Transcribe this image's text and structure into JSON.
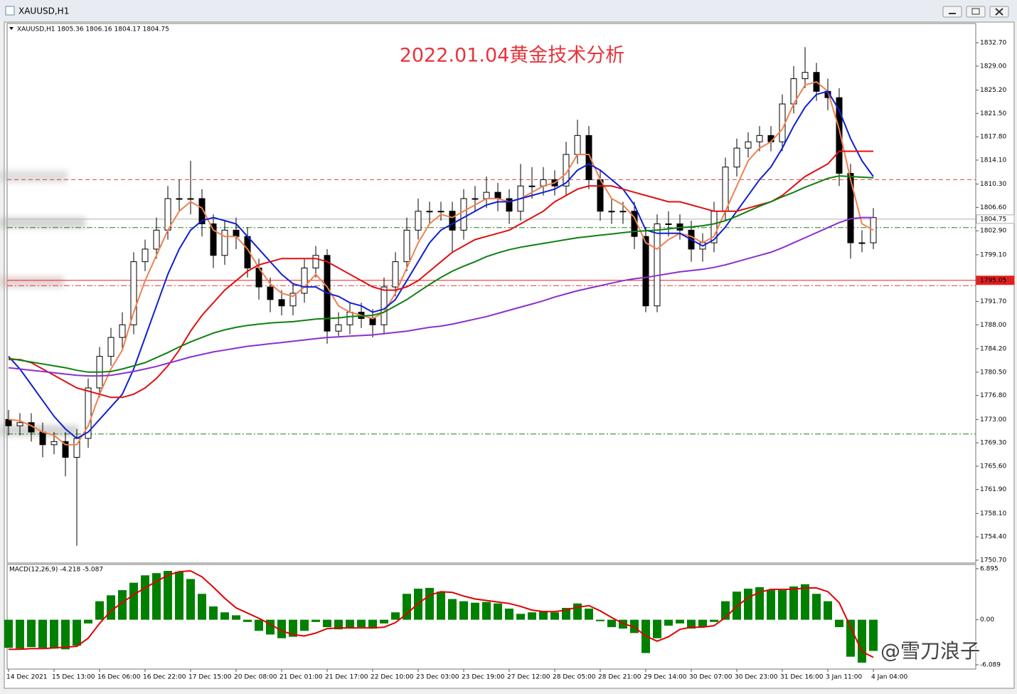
{
  "window": {
    "title": "XAUUSD,H1"
  },
  "chart_data": [
    {
      "type": "candlestick",
      "title": "2022.01.04黄金技术分析",
      "subtitle": "XAUUSD,H1  1805.36 1806.16 1804.17 1804.75",
      "open": [
        1773,
        1772,
        1772.5,
        1771,
        1769,
        1769.5,
        1767,
        1770,
        1778,
        1783,
        1786,
        1788,
        1798,
        1800,
        1803,
        1808,
        1808,
        1808,
        1804,
        1799,
        1803,
        1802,
        1797,
        1794,
        1792,
        1791,
        1793,
        1797,
        1799,
        1787,
        1788,
        1790,
        1789,
        1788,
        1794,
        1798,
        1803,
        1806,
        1806,
        1806,
        1803,
        1808,
        1808,
        1809,
        1808,
        1806,
        1810,
        1810,
        1811,
        1810,
        1815,
        1818,
        1811,
        1806,
        1806,
        1806,
        1802,
        1791,
        1804,
        1804,
        1803,
        1800,
        1801,
        1806,
        1813,
        1816,
        1817,
        1818,
        1817,
        1823,
        1827,
        1828,
        1825,
        1824,
        1812,
        1801,
        1801
      ],
      "high": [
        1774.5,
        1774,
        1774,
        1772.5,
        1771,
        1771,
        1771.5,
        1779.5,
        1784.5,
        1787.5,
        1790,
        1799.5,
        1801.5,
        1805,
        1810,
        1811,
        1814,
        1809.5,
        1805.5,
        1804.5,
        1805,
        1803.5,
        1798.5,
        1795.5,
        1793.5,
        1794.5,
        1798.5,
        1800.5,
        1800,
        1790,
        1791.5,
        1791.5,
        1790.5,
        1795.5,
        1799.5,
        1805,
        1808,
        1807.5,
        1807.5,
        1807.5,
        1809.5,
        1810,
        1811.5,
        1810.5,
        1809.5,
        1813.5,
        1813,
        1813,
        1812.5,
        1817,
        1820.5,
        1819.5,
        1812.5,
        1808,
        1807.5,
        1807.5,
        1803.5,
        1805.5,
        1806,
        1805.5,
        1804.5,
        1802.5,
        1807.5,
        1814.5,
        1817.5,
        1818.5,
        1819.5,
        1819.5,
        1824.5,
        1829,
        1832,
        1829.5,
        1827,
        1825.5,
        1813.5,
        1803,
        1806.5
      ],
      "low": [
        1770.5,
        1770.5,
        1769.5,
        1767,
        1767.5,
        1764,
        1753,
        1768.5,
        1776.5,
        1781.5,
        1784,
        1786.5,
        1796.5,
        1798.5,
        1801.5,
        1806,
        1805.5,
        1802,
        1797,
        1797.5,
        1800,
        1795.5,
        1792,
        1790,
        1789.5,
        1789.5,
        1791.5,
        1795.5,
        1785,
        1786,
        1786.5,
        1787.5,
        1786,
        1786.5,
        1792.5,
        1796.5,
        1801.5,
        1804,
        1804.5,
        1799.5,
        1801.5,
        1806,
        1806.5,
        1806,
        1804,
        1804.5,
        1808,
        1808.5,
        1808.5,
        1808.5,
        1813.5,
        1809.5,
        1804.5,
        1804,
        1804,
        1800,
        1790,
        1790,
        1802,
        1801.5,
        1798,
        1798,
        1799.5,
        1804.5,
        1811.5,
        1814.5,
        1815.5,
        1815.5,
        1815.5,
        1821.5,
        1825.5,
        1823.5,
        1822,
        1810,
        1798.5,
        1799.5,
        1800
      ],
      "close": [
        1772,
        1772.5,
        1771,
        1769,
        1769.5,
        1767,
        1770,
        1778,
        1783,
        1786,
        1788,
        1798,
        1800,
        1803,
        1808,
        1808,
        1808,
        1804,
        1799,
        1803,
        1802,
        1797,
        1794,
        1792,
        1791,
        1793,
        1797,
        1799,
        1787,
        1788,
        1790,
        1789,
        1788,
        1794,
        1798,
        1803,
        1806,
        1806,
        1806,
        1803,
        1808,
        1808,
        1809,
        1808,
        1806,
        1810,
        1810,
        1811,
        1810,
        1815,
        1818,
        1811,
        1806,
        1806,
        1806,
        1802,
        1791,
        1804,
        1804,
        1803,
        1800,
        1801,
        1806,
        1813,
        1816,
        1817,
        1818,
        1817,
        1823,
        1827,
        1828,
        1825,
        1824,
        1812,
        1801,
        1801,
        1805
      ],
      "up_color": "#ffffff",
      "down_color": "#000000",
      "overlays": [
        {
          "color": "#f08050",
          "values": [
            1773,
            1772.8,
            1772,
            1771,
            1770.5,
            1769,
            1769,
            1772,
            1777,
            1781,
            1784,
            1790,
            1795,
            1799,
            1803,
            1806,
            1807.5,
            1806.5,
            1803,
            1802,
            1802,
            1800,
            1797,
            1794.5,
            1793,
            1792.5,
            1794,
            1796,
            1794,
            1791,
            1790,
            1789.5,
            1789,
            1790,
            1793,
            1797,
            1801,
            1804,
            1805.5,
            1805,
            1806,
            1807,
            1808,
            1808,
            1807.5,
            1808,
            1809,
            1810,
            1810.5,
            1812,
            1815,
            1815,
            1811,
            1808,
            1807,
            1805,
            1801,
            1800,
            1801.5,
            1802.5,
            1802,
            1801,
            1802,
            1806,
            1810,
            1814,
            1816,
            1817,
            1819,
            1823,
            1826,
            1826.5,
            1825,
            1819,
            1811,
            1804,
            1803
          ]
        },
        {
          "color": "#1020d0",
          "values": [
            1783,
            1781,
            1778.5,
            1776,
            1773.5,
            1771.5,
            1770,
            1771,
            1773,
            1775,
            1777,
            1781,
            1786,
            1791,
            1796,
            1800,
            1803,
            1804.5,
            1805,
            1804.5,
            1804,
            1802,
            1800,
            1798,
            1796,
            1794.5,
            1794,
            1794,
            1793,
            1792.5,
            1791.5,
            1791,
            1790,
            1790.5,
            1792,
            1795,
            1798,
            1801,
            1803,
            1804,
            1805,
            1806,
            1807,
            1807.5,
            1807.5,
            1808,
            1808.5,
            1809,
            1809.5,
            1810.5,
            1812.5,
            1813.5,
            1812.5,
            1811,
            1809.5,
            1807,
            1803,
            1802.5,
            1802.5,
            1802.5,
            1801.5,
            1800.5,
            1801.5,
            1803.5,
            1806,
            1808.5,
            1811,
            1813,
            1816,
            1819.5,
            1822.5,
            1824.5,
            1825,
            1822,
            1817.5,
            1814,
            1811.5
          ]
        },
        {
          "color": "#e01010",
          "values": [
            1782.5,
            1782.5,
            1782,
            1781,
            1780,
            1779,
            1778,
            1777.5,
            1777,
            1776.5,
            1776.5,
            1777,
            1778,
            1779.5,
            1781.5,
            1784,
            1787,
            1789.5,
            1791.5,
            1793.5,
            1795,
            1796.5,
            1797.5,
            1798,
            1798.5,
            1798.5,
            1798.5,
            1798.5,
            1798,
            1797,
            1796,
            1795,
            1794,
            1793.5,
            1793.5,
            1794,
            1795,
            1796.5,
            1798,
            1799.5,
            1800.5,
            1801.5,
            1802,
            1802.5,
            1803,
            1804,
            1805,
            1806,
            1807.5,
            1808.5,
            1809.5,
            1810,
            1810,
            1810,
            1809.5,
            1809,
            1808.5,
            1808,
            1807.5,
            1807.5,
            1807,
            1806.5,
            1806,
            1806,
            1806,
            1806.5,
            1807,
            1807.5,
            1808.5,
            1810,
            1811.5,
            1812.5,
            1813.5,
            1815.5,
            1815.5,
            1815.5,
            1815.5
          ]
        },
        {
          "color": "#108010",
          "values": [
            1782.7,
            1782.4,
            1782.1,
            1781.8,
            1781.5,
            1781.2,
            1780.8,
            1780.5,
            1780.5,
            1780.6,
            1781,
            1781.5,
            1782,
            1782.8,
            1783.6,
            1784.5,
            1785.3,
            1786,
            1786.7,
            1787.2,
            1787.6,
            1787.9,
            1788.1,
            1788.3,
            1788.4,
            1788.5,
            1788.7,
            1788.9,
            1789,
            1789.1,
            1789.3,
            1789.4,
            1789.5,
            1790,
            1791,
            1792,
            1793.2,
            1794.4,
            1795.5,
            1796.5,
            1797.3,
            1798,
            1798.8,
            1799.4,
            1799.9,
            1800.3,
            1800.6,
            1800.9,
            1801.2,
            1801.5,
            1801.8,
            1802,
            1802.2,
            1802.4,
            1802.6,
            1802.8,
            1802.9,
            1803,
            1803.2,
            1803.4,
            1803.5,
            1803.7,
            1804,
            1804.5,
            1805.2,
            1806,
            1806.8,
            1807.5,
            1808.3,
            1809,
            1809.8,
            1810.5,
            1811.2,
            1811.6,
            1811.5,
            1811.4,
            1811.3
          ]
        },
        {
          "color": "#8a30d0",
          "values": [
            1781.2,
            1781,
            1780.8,
            1780.6,
            1780.4,
            1780.2,
            1780,
            1779.9,
            1779.9,
            1780,
            1780.3,
            1780.6,
            1781,
            1781.4,
            1781.9,
            1782.4,
            1782.9,
            1783.3,
            1783.7,
            1784,
            1784.3,
            1784.6,
            1784.8,
            1785,
            1785.2,
            1785.4,
            1785.6,
            1785.8,
            1786,
            1786.1,
            1786.2,
            1786.3,
            1786.4,
            1786.6,
            1786.8,
            1787,
            1787.3,
            1787.6,
            1787.8,
            1788.1,
            1788.5,
            1788.9,
            1789.3,
            1789.8,
            1790.3,
            1790.8,
            1791.3,
            1791.8,
            1792.4,
            1792.9,
            1793.4,
            1793.8,
            1794.2,
            1794.6,
            1795,
            1795.3,
            1795.5,
            1795.8,
            1796.1,
            1796.4,
            1796.6,
            1796.8,
            1797.1,
            1797.5,
            1798,
            1798.5,
            1799,
            1799.5,
            1800.2,
            1801,
            1801.8,
            1802.6,
            1803.4,
            1804.2,
            1804.8,
            1805,
            1805
          ]
        }
      ],
      "levels": [
        {
          "value": 1811,
          "color": "#e04040",
          "style": "dash",
          "labeled": false
        },
        {
          "value": 1804.75,
          "color": "#b0b0b0",
          "style": "solid",
          "labeled": true
        },
        {
          "value": 1803.4,
          "color": "#208020",
          "style": "dashdot",
          "labeled": false
        },
        {
          "value": 1795.05,
          "color": "#e02020",
          "style": "solid",
          "labeled": true
        },
        {
          "value": 1794.2,
          "color": "#e04040",
          "style": "dashdot",
          "labeled": false
        },
        {
          "value": 1770.7,
          "color": "#208020",
          "style": "dashdot",
          "labeled": false
        }
      ],
      "ylim": [
        1750.25,
        1835.75
      ],
      "yticks": [
        {
          "value": 1832.7,
          "label": "1832.70"
        },
        {
          "value": 1829,
          "label": "1829.00"
        },
        {
          "value": 1825.2,
          "label": "1825.20"
        },
        {
          "value": 1821.5,
          "label": "1821.50"
        },
        {
          "value": 1817.8,
          "label": "1817.80"
        },
        {
          "value": 1814.1,
          "label": "1814.10"
        },
        {
          "value": 1810.3,
          "label": "1810.30"
        },
        {
          "value": 1806.6,
          "label": "1806.60"
        },
        {
          "value": 1802.9,
          "label": "1802.90"
        },
        {
          "value": 1799.1,
          "label": "1799.10"
        },
        {
          "value": 1791.7,
          "label": "1791.70"
        },
        {
          "value": 1788,
          "label": "1788.00"
        },
        {
          "value": 1784.2,
          "label": "1784.20"
        },
        {
          "value": 1780.5,
          "label": "1780.50"
        },
        {
          "value": 1776.8,
          "label": "1776.80"
        },
        {
          "value": 1773,
          "label": "1773.00"
        },
        {
          "value": 1769.3,
          "label": "1769.30"
        },
        {
          "value": 1765.6,
          "label": "1765.60"
        },
        {
          "value": 1761.9,
          "label": "1761.90"
        },
        {
          "value": 1758.1,
          "label": "1758.10"
        },
        {
          "value": 1754.4,
          "label": "1754.40"
        },
        {
          "value": 1750.7,
          "label": "1750.70"
        }
      ]
    },
    {
      "type": "bar",
      "title": "MACD(12,26,9) -4.218 -5.087",
      "color": "#008000",
      "values": [
        -3.8,
        -3.9,
        -3.7,
        -3.8,
        -3.9,
        -4.0,
        -3.5,
        -0.5,
        2.5,
        3.3,
        4.0,
        5.0,
        6.0,
        6.3,
        6.6,
        6.5,
        5.5,
        3.5,
        1.8,
        1.0,
        0.6,
        -0.3,
        -1.5,
        -2.0,
        -2.5,
        -2.3,
        -1.5,
        -0.3,
        -1.0,
        -1.3,
        -1.2,
        -1.0,
        -1.2,
        -0.5,
        1.0,
        3.5,
        4.2,
        4.3,
        3.8,
        2.8,
        2.5,
        2.3,
        2.4,
        2.2,
        1.5,
        0.8,
        1.0,
        1.2,
        1.0,
        1.6,
        2.2,
        1.5,
        -0.2,
        -1.0,
        -1.2,
        -1.8,
        -4.5,
        -2.5,
        -0.8,
        -0.5,
        -1.2,
        -1.0,
        -0.3,
        2.5,
        3.8,
        4.2,
        4.4,
        4.0,
        4.0,
        4.5,
        4.8,
        3.5,
        2.5,
        -1.0,
        -5.0,
        -5.8,
        -4.218
      ],
      "signal": {
        "color": "#e00000",
        "values": [
          -4,
          -4,
          -3.9,
          -3.9,
          -3.8,
          -3.7,
          -3.6,
          -2.5,
          -0.5,
          1.2,
          2.3,
          3.4,
          4.3,
          5.2,
          6.0,
          6.5,
          6.6,
          5.8,
          4.4,
          2.9,
          1.6,
          0.9,
          0.2,
          -0.6,
          -1.5,
          -2.0,
          -2.2,
          -1.8,
          -1.2,
          -1.1,
          -1.1,
          -1.1,
          -1.1,
          -1.0,
          -0.4,
          0.8,
          2.2,
          3.3,
          3.8,
          3.7,
          3.2,
          2.8,
          2.6,
          2.4,
          2.2,
          1.8,
          1.3,
          1.1,
          1.1,
          1.3,
          1.7,
          1.9,
          1.2,
          0.3,
          -0.5,
          -1.0,
          -2.2,
          -2.9,
          -2.3,
          -1.3,
          -1.0,
          -1.0,
          -0.8,
          0.3,
          1.8,
          3.0,
          3.7,
          4.1,
          4.1,
          4.1,
          4.3,
          4.3,
          3.8,
          2.3,
          -1.0,
          -4.3,
          -5.087
        ]
      },
      "categories": [
        "14 Dec 2021",
        null,
        null,
        null,
        "15 Dec 13:00",
        null,
        null,
        null,
        "16 Dec 06:00",
        null,
        null,
        null,
        "16 Dec 22:00",
        null,
        null,
        null,
        "17 Dec 15:00",
        null,
        null,
        null,
        "20 Dec 08:00",
        null,
        null,
        null,
        "21 Dec 01:00",
        null,
        null,
        null,
        "21 Dec 17:00",
        null,
        null,
        null,
        "22 Dec 10:00",
        null,
        null,
        null,
        "23 Dec 03:00",
        null,
        null,
        null,
        "23 Dec 19:00",
        null,
        null,
        null,
        "27 Dec 12:00",
        null,
        null,
        null,
        "28 Dec 05:00",
        null,
        null,
        null,
        "28 Dec 21:00",
        null,
        null,
        null,
        "29 Dec 14:00",
        null,
        null,
        null,
        "30 Dec 07:00",
        null,
        null,
        null,
        "30 Dec 23:00",
        null,
        null,
        null,
        "31 Dec 16:00",
        null,
        null,
        null,
        "3 Jan 11:00",
        null,
        null,
        null,
        "4 Jan 04:00"
      ],
      "ylim": [
        -6.67,
        7.47
      ],
      "yticks": [
        6.895,
        {
          "value": 0,
          "label": "0.00"
        },
        -6.089
      ]
    }
  ],
  "watermark": "@雪刀浪子"
}
